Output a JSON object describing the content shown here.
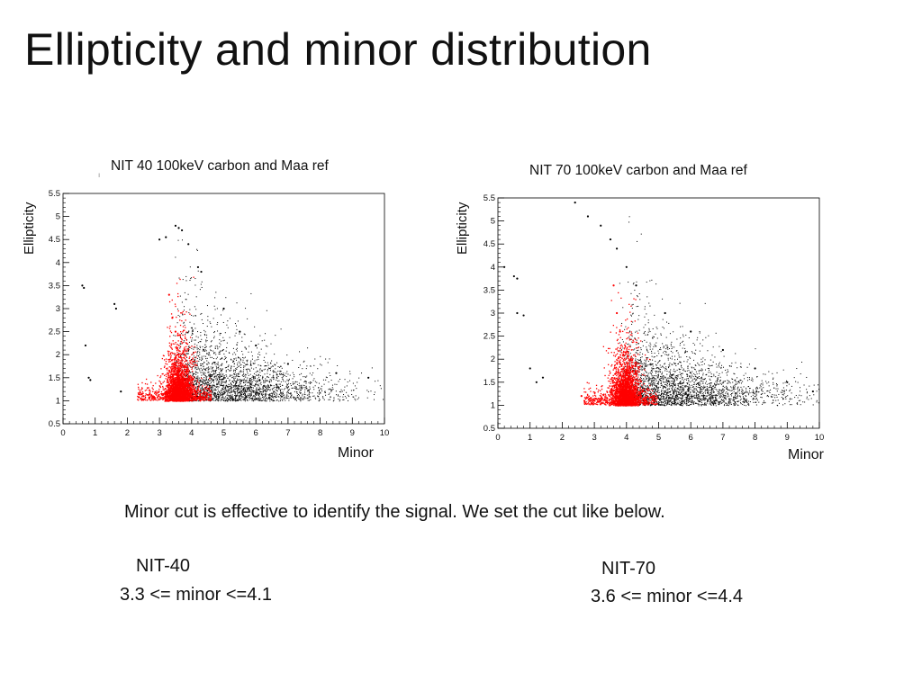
{
  "slide": {
    "title": "Ellipticity and minor distribution",
    "note": "Minor cut is effective to identify the signal. We set the cut like below.",
    "cuts": [
      {
        "name": "NIT-40",
        "rule": "3.3 <= minor <=4.1"
      },
      {
        "name": "NIT-70",
        "rule": "3.6 <= minor <=4.4"
      }
    ]
  },
  "colors": {
    "background": "#000000",
    "signal": "#ff0000"
  },
  "chart_data": [
    {
      "type": "scatter",
      "title": "NIT 40 100keV carbon and Maa ref",
      "xlabel": "Minor",
      "ylabel": "Ellipticity",
      "xlim": [
        0,
        10
      ],
      "ylim": [
        0.5,
        5.5
      ],
      "xticks": [
        "0",
        "1",
        "2",
        "3",
        "4",
        "5",
        "6",
        "7",
        "8",
        "9",
        "10"
      ],
      "yticks": [
        "0.5",
        "1",
        "1.5",
        "2",
        "2.5",
        "3",
        "3.5",
        "4",
        "4.5",
        "5",
        "5.5"
      ],
      "grid": false,
      "series": [
        {
          "color": "#000000",
          "points": [
            [
              0.6,
              3.5
            ],
            [
              0.65,
              3.45
            ],
            [
              0.7,
              2.2
            ],
            [
              0.8,
              1.5
            ],
            [
              0.85,
              1.45
            ],
            [
              1.6,
              3.1
            ],
            [
              1.65,
              3.0
            ],
            [
              1.8,
              1.2
            ],
            [
              3.0,
              4.5
            ],
            [
              3.2,
              4.55
            ],
            [
              3.5,
              4.8
            ],
            [
              3.6,
              4.75
            ],
            [
              3.7,
              4.7
            ],
            [
              3.9,
              4.4
            ],
            [
              4.2,
              3.9
            ],
            [
              4.3,
              3.8
            ],
            [
              5.0,
              3.0
            ],
            [
              5.5,
              2.5
            ],
            [
              6.0,
              2.2
            ],
            [
              7.0,
              1.8
            ],
            [
              8.5,
              1.6
            ],
            [
              9.5,
              1.5
            ]
          ]
        },
        {
          "color": "#ff0000",
          "points": [
            [
              3.3,
              3.3
            ],
            [
              3.4,
              2.8
            ],
            [
              3.5,
              2.5
            ],
            [
              3.6,
              2.0
            ],
            [
              3.7,
              1.6
            ],
            [
              3.8,
              1.3
            ],
            [
              3.9,
              1.1
            ],
            [
              3.5,
              1.2
            ],
            [
              3.2,
              1.15
            ],
            [
              2.5,
              1.1
            ],
            [
              4.0,
              1.5
            ],
            [
              4.1,
              1.2
            ]
          ]
        }
      ]
    },
    {
      "type": "scatter",
      "title": "NIT 70 100keV carbon and Maa ref",
      "xlabel": "Minor",
      "ylabel": "Ellipticity",
      "xlim": [
        0,
        10
      ],
      "ylim": [
        0.5,
        5.5
      ],
      "xticks": [
        "0",
        "1",
        "2",
        "3",
        "4",
        "5",
        "6",
        "7",
        "8",
        "9",
        "10"
      ],
      "yticks": [
        "0.5",
        "1",
        "1.5",
        "2",
        "2.5",
        "3",
        "3.5",
        "4",
        "4.5",
        "5",
        "5.5"
      ],
      "grid": false,
      "series": [
        {
          "color": "#000000",
          "points": [
            [
              0.2,
              4.0
            ],
            [
              0.5,
              3.8
            ],
            [
              0.6,
              3.75
            ],
            [
              0.6,
              3.0
            ],
            [
              0.8,
              2.95
            ],
            [
              1.0,
              1.8
            ],
            [
              1.2,
              1.5
            ],
            [
              1.4,
              1.6
            ],
            [
              2.4,
              5.4
            ],
            [
              2.8,
              5.1
            ],
            [
              3.2,
              4.9
            ],
            [
              3.5,
              4.6
            ],
            [
              3.7,
              4.4
            ],
            [
              4.0,
              4.0
            ],
            [
              4.3,
              3.6
            ],
            [
              5.2,
              3.0
            ],
            [
              6.0,
              2.6
            ],
            [
              7.0,
              2.2
            ],
            [
              8.0,
              1.8
            ],
            [
              9.0,
              1.5
            ],
            [
              9.8,
              1.3
            ]
          ]
        },
        {
          "color": "#ff0000",
          "points": [
            [
              3.6,
              3.6
            ],
            [
              3.7,
              3.0
            ],
            [
              3.8,
              2.6
            ],
            [
              3.9,
              2.1
            ],
            [
              4.0,
              1.7
            ],
            [
              4.1,
              1.4
            ],
            [
              4.2,
              1.2
            ],
            [
              3.4,
              1.15
            ],
            [
              3.0,
              1.1
            ],
            [
              2.6,
              1.2
            ],
            [
              4.5,
              1.3
            ],
            [
              4.4,
              1.1
            ]
          ]
        }
      ]
    }
  ]
}
